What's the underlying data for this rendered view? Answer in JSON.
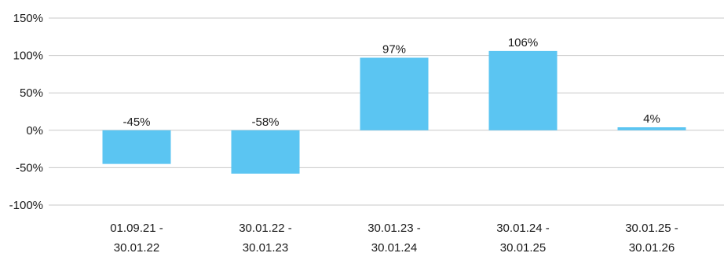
{
  "chart_data": {
    "type": "bar",
    "title": "",
    "xlabel": "",
    "ylabel": "",
    "categories": [
      [
        "01.09.21 -",
        "30.01.22"
      ],
      [
        "30.01.22 -",
        "30.01.23"
      ],
      [
        "30.01.23 -",
        "30.01.24"
      ],
      [
        "30.01.24 -",
        "30.01.25"
      ],
      [
        "30.01.25 -",
        "30.01.26"
      ]
    ],
    "values": [
      -45,
      -58,
      97,
      106,
      4
    ],
    "data_labels": [
      "-45%",
      "-58%",
      "97%",
      "106%",
      "4%"
    ],
    "ylim": [
      -100,
      150
    ],
    "yticks": [
      150,
      100,
      50,
      0,
      -50,
      -100
    ],
    "ytick_labels": [
      "150%",
      "100%",
      "50%",
      "0%",
      "-50%",
      "-100%"
    ],
    "grid": true,
    "legend": "none",
    "colors": {
      "bar": "#5bc5f2",
      "grid": "#c8c8c8",
      "text": "#1a1a1a"
    }
  }
}
